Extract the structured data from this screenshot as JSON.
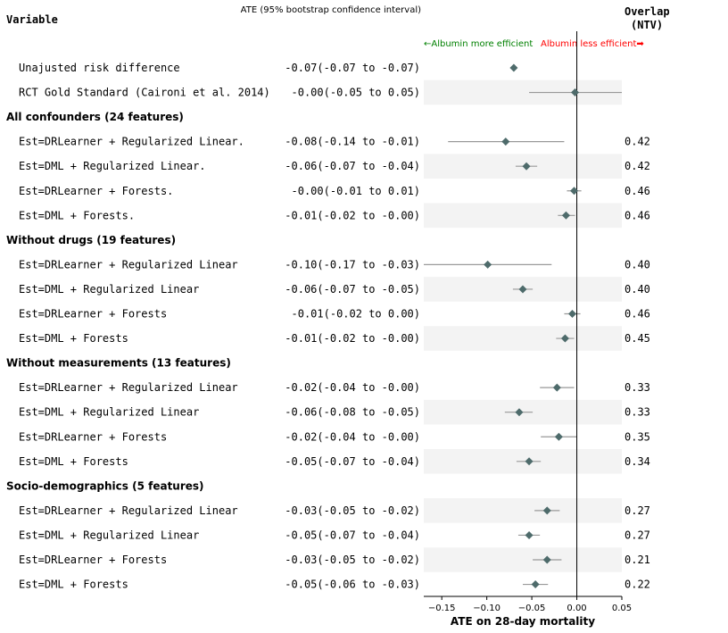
{
  "header": {
    "variable": "Variable",
    "ate_ci": "ATE (95% bootstrap confidence interval)",
    "overlap_line1": "Overlap",
    "overlap_line2": "(NTV)",
    "left_annotation": "←Albumin more efficient",
    "right_annotation": "Albumin less efficient➡",
    "left_color": "#008000",
    "right_color": "#ff0000"
  },
  "chart_data": {
    "type": "forest",
    "xlabel": "ATE on 28-day mortality",
    "xlim": [
      -0.17,
      0.05
    ],
    "xticks": [
      {
        "value": -0.15,
        "label": "−0.15"
      },
      {
        "value": -0.1,
        "label": "−0.10"
      },
      {
        "value": -0.05,
        "label": "−0.05"
      },
      {
        "value": 0.0,
        "label": "0.00"
      },
      {
        "value": 0.05,
        "label": "0.05"
      }
    ],
    "reference_line": 0,
    "marker_color": "#4e6b6b",
    "ci_color": "#999999",
    "band_color": "#f3f3f3",
    "rows": [
      {
        "kind": "estimate",
        "label": "Unajusted risk difference",
        "ate_text": "-0.07(-0.07 to -0.07)",
        "ate": -0.07,
        "lo": -0.07,
        "hi": -0.07,
        "overlap": null,
        "band": false
      },
      {
        "kind": "estimate",
        "label": "RCT Gold Standard (Caironi et al. 2014)",
        "ate_text": "-0.00(-0.05 to  0.05)",
        "ate": -0.002,
        "lo": -0.053,
        "hi": 0.05,
        "overlap": null,
        "band": true
      },
      {
        "kind": "header",
        "label": "All confounders (24 features)"
      },
      {
        "kind": "estimate",
        "label": "Est=DRLearner + Regularized Linear.",
        "ate_text": "-0.08(-0.14 to -0.01)",
        "ate": -0.079,
        "lo": -0.143,
        "hi": -0.014,
        "overlap": "0.42",
        "band": false
      },
      {
        "kind": "estimate",
        "label": "Est=DML + Regularized Linear.",
        "ate_text": "-0.06(-0.07 to -0.04)",
        "ate": -0.056,
        "lo": -0.068,
        "hi": -0.044,
        "overlap": "0.42",
        "band": true
      },
      {
        "kind": "estimate",
        "label": "Est=DRLearner + Forests.",
        "ate_text": "-0.00(-0.01 to  0.01)",
        "ate": -0.003,
        "lo": -0.011,
        "hi": 0.005,
        "overlap": "0.46",
        "band": false
      },
      {
        "kind": "estimate",
        "label": "Est=DML + Forests.",
        "ate_text": "-0.01(-0.02 to -0.00)",
        "ate": -0.012,
        "lo": -0.021,
        "hi": -0.002,
        "overlap": "0.46",
        "band": true
      },
      {
        "kind": "header",
        "label": "Without drugs (19 features)"
      },
      {
        "kind": "estimate",
        "label": "Est=DRLearner + Regularized Linear",
        "ate_text": "-0.10(-0.17 to -0.03)",
        "ate": -0.099,
        "lo": -0.17,
        "hi": -0.028,
        "overlap": "0.40",
        "band": false
      },
      {
        "kind": "estimate",
        "label": "Est=DML + Regularized Linear",
        "ate_text": "-0.06(-0.07 to -0.05)",
        "ate": -0.06,
        "lo": -0.071,
        "hi": -0.049,
        "overlap": "0.40",
        "band": true
      },
      {
        "kind": "estimate",
        "label": "Est=DRLearner + Forests",
        "ate_text": "-0.01(-0.02 to  0.00)",
        "ate": -0.005,
        "lo": -0.014,
        "hi": 0.004,
        "overlap": "0.46",
        "band": false
      },
      {
        "kind": "estimate",
        "label": "Est=DML + Forests",
        "ate_text": "-0.01(-0.02 to -0.00)",
        "ate": -0.013,
        "lo": -0.023,
        "hi": -0.003,
        "overlap": "0.45",
        "band": true
      },
      {
        "kind": "header",
        "label": "Without measurements (13 features)"
      },
      {
        "kind": "estimate",
        "label": "Est=DRLearner + Regularized Linear",
        "ate_text": "-0.02(-0.04 to -0.00)",
        "ate": -0.022,
        "lo": -0.041,
        "hi": -0.003,
        "overlap": "0.33",
        "band": false
      },
      {
        "kind": "estimate",
        "label": "Est=DML + Regularized Linear",
        "ate_text": "-0.06(-0.08 to -0.05)",
        "ate": -0.064,
        "lo": -0.08,
        "hi": -0.049,
        "overlap": "0.33",
        "band": true
      },
      {
        "kind": "estimate",
        "label": "Est=DRLearner + Forests",
        "ate_text": "-0.02(-0.04 to -0.00)",
        "ate": -0.02,
        "lo": -0.04,
        "hi": 0.0,
        "overlap": "0.35",
        "band": false
      },
      {
        "kind": "estimate",
        "label": "Est=DML + Forests",
        "ate_text": "-0.05(-0.07 to -0.04)",
        "ate": -0.053,
        "lo": -0.067,
        "hi": -0.04,
        "overlap": "0.34",
        "band": true
      },
      {
        "kind": "header",
        "label": "Socio-demographics (5 features)"
      },
      {
        "kind": "estimate",
        "label": "Est=DRLearner + Regularized Linear",
        "ate_text": "-0.03(-0.05 to -0.02)",
        "ate": -0.033,
        "lo": -0.047,
        "hi": -0.019,
        "overlap": "0.27",
        "band": true
      },
      {
        "kind": "estimate",
        "label": "Est=DML + Regularized Linear",
        "ate_text": "-0.05(-0.07 to -0.04)",
        "ate": -0.053,
        "lo": -0.065,
        "hi": -0.041,
        "overlap": "0.27",
        "band": false
      },
      {
        "kind": "estimate",
        "label": "Est=DRLearner + Forests",
        "ate_text": "-0.03(-0.05 to -0.02)",
        "ate": -0.033,
        "lo": -0.049,
        "hi": -0.017,
        "overlap": "0.21",
        "band": true
      },
      {
        "kind": "estimate",
        "label": "Est=DML + Forests",
        "ate_text": "-0.05(-0.06 to -0.03)",
        "ate": -0.046,
        "lo": -0.06,
        "hi": -0.032,
        "overlap": "0.22",
        "band": false
      }
    ]
  }
}
